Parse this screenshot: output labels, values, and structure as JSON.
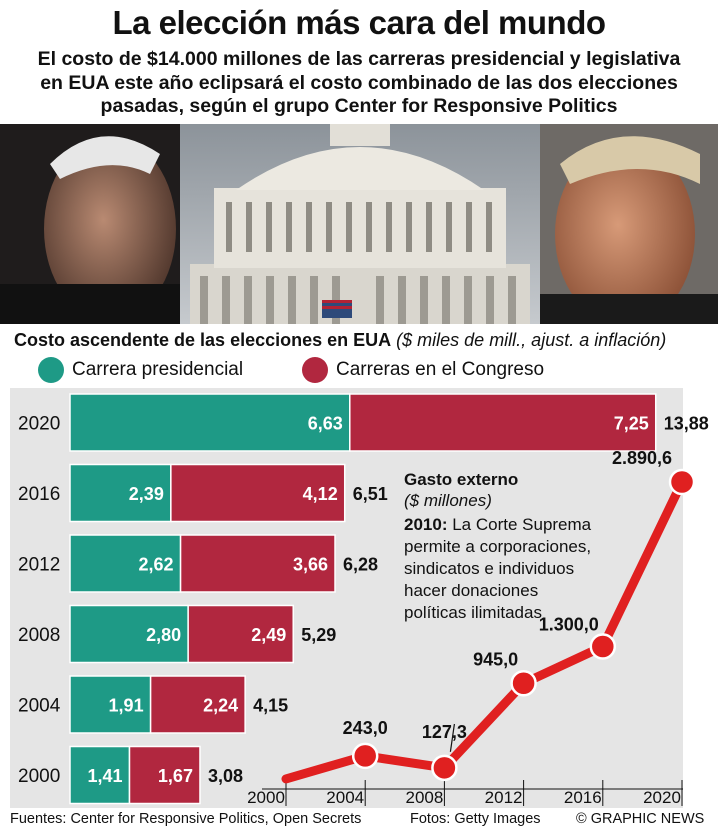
{
  "header": {
    "title": "La elección más cara del mundo",
    "subtitle_lines": [
      "El costo de $14.000 millones de las carreras presidencial y legislativa",
      "en EUA este año eclipsará el costo combinado de las dos elecciones",
      "pasadas, según el grupo Center for Responsive Politics"
    ]
  },
  "section": {
    "title_bold": "Costo ascendente de las elecciones en EUA",
    "title_italic": "($ miles de mill., ajust. a inflación)"
  },
  "legend": {
    "presidential": "Carrera presidencial",
    "congress": "Carreras en el Congreso"
  },
  "colors": {
    "presidential": "#1e9a86",
    "congress": "#b1273f",
    "outside_spending": "#e02020",
    "panel": "#e5e5e5"
  },
  "annotation": {
    "title": "Gasto externo",
    "subtitle": "($ millones)",
    "note_year": "2010:",
    "note_lines": [
      "La Corte Suprema",
      "permite a corporaciones,",
      "sindicatos e individuos",
      "hacer donaciones",
      "políticas ilimitadas"
    ]
  },
  "chart_data": [
    {
      "type": "bar",
      "stacked": true,
      "orientation": "horizontal",
      "title": "Costo ascendente de las elecciones en EUA",
      "unit": "($ miles de mill., ajust. a inflación)",
      "categories": [
        "2020",
        "2016",
        "2012",
        "2008",
        "2004",
        "2000"
      ],
      "series": [
        {
          "name": "Carrera presidencial",
          "values": [
            "6,63",
            "2,39",
            "2,62",
            "2,80",
            "1,91",
            "1,41"
          ]
        },
        {
          "name": "Carreras en el Congreso",
          "values": [
            "7,25",
            "4,12",
            "3,66",
            "2,49",
            "2,24",
            "1,67"
          ]
        }
      ],
      "totals": [
        "13,88",
        "6,51",
        "6,28",
        "5,29",
        "4,15",
        "3,08"
      ]
    },
    {
      "type": "line",
      "title": "Gasto externo",
      "unit": "($ millones)",
      "x": [
        "2000",
        "2004",
        "2008",
        "2012",
        "2016",
        "2020"
      ],
      "points": [
        {
          "x": 2004,
          "y": 243.0,
          "label": "243,0"
        },
        {
          "x": 2008,
          "y": 127.3,
          "label": "127,3"
        },
        {
          "x": 2012,
          "y": 945.0,
          "label": "945,0"
        },
        {
          "x": 2016,
          "y": 1300.0,
          "label": "1.300,0"
        },
        {
          "x": 2020,
          "y": 2890.6,
          "label": "2.890,6"
        }
      ],
      "line_start": {
        "x": 2000,
        "y": 20
      },
      "xlim": [
        2000,
        2020
      ],
      "ylim": [
        0,
        2890.6
      ]
    }
  ],
  "footer": {
    "sources": "Fuentes: Center for Responsive Politics, Open Secrets",
    "photos": "Fotos: Getty Images",
    "credit": "© GRAPHIC NEWS"
  }
}
